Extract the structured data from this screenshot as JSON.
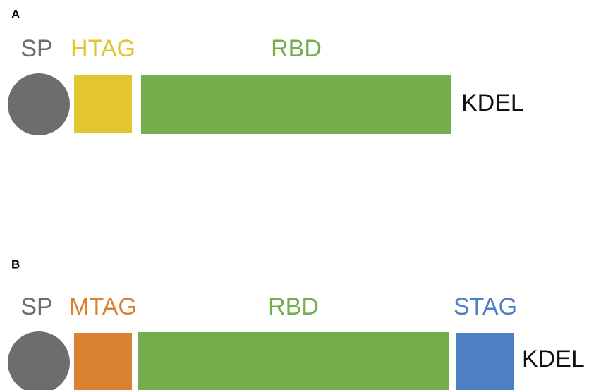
{
  "panels": [
    {
      "label": "A",
      "parts": {
        "sp": "SP",
        "tag": "HTAG",
        "domain": "RBD",
        "end": "KDEL"
      }
    },
    {
      "label": "B",
      "parts": {
        "sp": "SP",
        "tag": "MTAG",
        "domain": "RBD",
        "tag2": "STAG",
        "end": "KDEL"
      }
    }
  ]
}
